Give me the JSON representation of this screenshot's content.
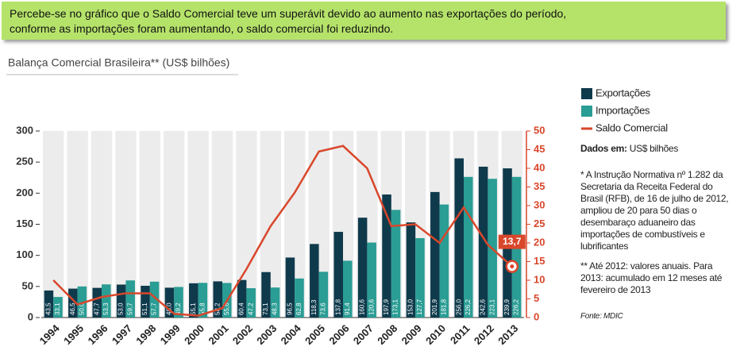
{
  "banner": {
    "lines": [
      "Percebe-se no gráfico que o Saldo Comercial teve um superávit devido ao aumento nas exportações do período,",
      "conforme as importações foram aumentando, o saldo comercial foi reduzindo."
    ]
  },
  "chart_data": {
    "type": "bar",
    "title": "Balança Comercial Brasileira** (US$ bilhões)",
    "categories": [
      "1994",
      "1995",
      "1996",
      "1997",
      "1998",
      "1999",
      "2000",
      "2001",
      "2002",
      "2003",
      "2004",
      "2005",
      "2006",
      "2007",
      "2008",
      "2009",
      "2010",
      "2011",
      "2012",
      "2013"
    ],
    "series": [
      {
        "name": "Exportações",
        "color": "#0f3a4c",
        "values": [
          43.5,
          46.5,
          47.7,
          53.0,
          51.1,
          48.0,
          55.1,
          58.2,
          60.4,
          73.1,
          96.5,
          118.3,
          137.8,
          160.6,
          197.9,
          153.0,
          201.9,
          256.0,
          242.6,
          239.9
        ],
        "value_labels": [
          "43,5",
          "46,5",
          "47,7",
          "53,0",
          "51,1",
          "48,0",
          "55,1",
          "58,2",
          "60,4",
          "73,1",
          "96,5",
          "118,3",
          "137,8",
          "160,6",
          "197,9",
          "153,0",
          "201,9",
          "256,0",
          "242,6",
          "239,9"
        ]
      },
      {
        "name": "Importações",
        "color": "#2a9d94",
        "values": [
          33.1,
          50.0,
          53.3,
          59.7,
          57.7,
          49.2,
          55.8,
          55.6,
          47.2,
          48.3,
          62.8,
          73.6,
          91.4,
          120.6,
          173.1,
          127.7,
          181.8,
          226.2,
          223.1,
          226.2
        ],
        "value_labels": [
          "33,1",
          "50,0",
          "53,3",
          "59,7",
          "57,7",
          "49,2",
          "55,8",
          "55,6",
          "47,2",
          "48,3",
          "62,8",
          "73,6",
          "91,4",
          "120,6",
          "173,1",
          "127,7",
          "181,8",
          "226,2",
          "223,1",
          "226,2"
        ]
      },
      {
        "name": "Saldo Comercial",
        "type": "line",
        "axis": "y2",
        "color": "#d9472b",
        "values": [
          10,
          3.5,
          5.5,
          6.5,
          6.5,
          1,
          0.5,
          2.5,
          13,
          24.5,
          33.5,
          44.5,
          46,
          40,
          24.5,
          25,
          20,
          29.5,
          19.5,
          13.7
        ],
        "value_labels": [
          null,
          null,
          null,
          null,
          null,
          null,
          null,
          null,
          null,
          null,
          null,
          null,
          null,
          null,
          null,
          null,
          null,
          null,
          null,
          "13,7"
        ]
      }
    ],
    "ylim": [
      0,
      300
    ],
    "yticks": [
      0,
      50,
      100,
      150,
      200,
      250,
      300
    ],
    "y2lim": [
      0,
      50
    ],
    "y2ticks": [
      0,
      5,
      10,
      15,
      20,
      25,
      30,
      35,
      40,
      45,
      50
    ]
  },
  "notes": {
    "units_label": "Dados em:",
    "units": "US$ bilhões",
    "note1": "* A Instrução Normativa  nº 1.282 da Secretaria da Receita Federal do Brasil (RFB), de 16 de julho de 2012, ampliou de 20 para 50 dias o desembaraço aduaneiro das importações de combustíveis e lubrificantes",
    "note2": "** Até 2012: valores anuais. Para 2013: acumulado em 12 meses até fevereiro de 2013",
    "source": "Fonte: MDIC"
  }
}
